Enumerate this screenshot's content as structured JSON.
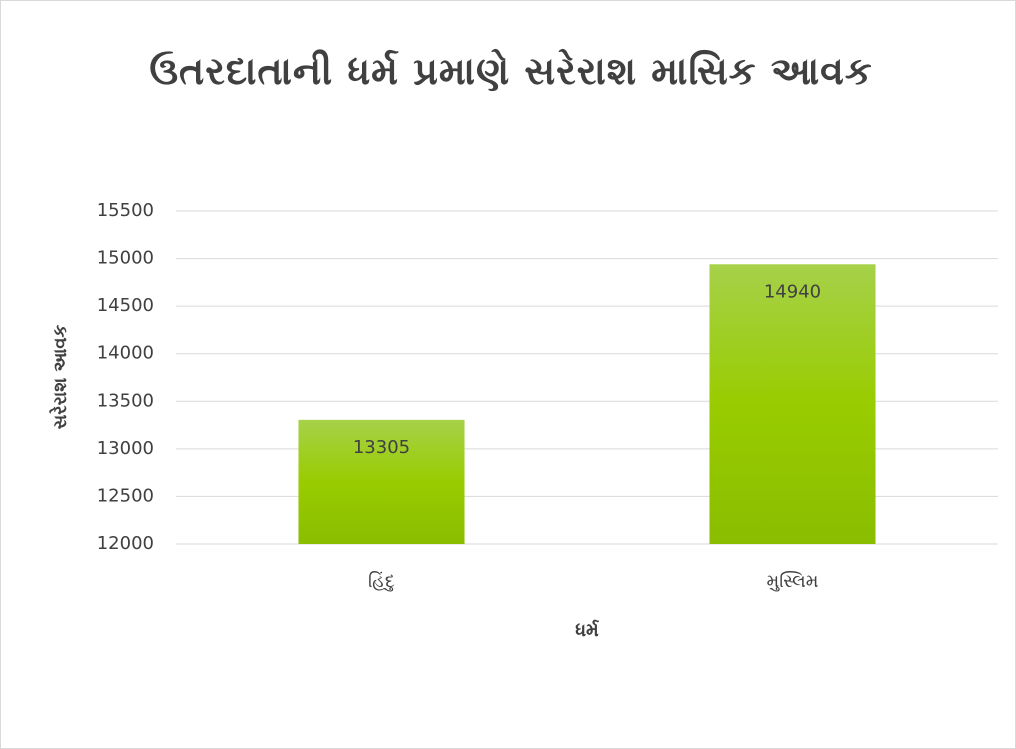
{
  "chart_data": {
    "type": "bar",
    "title": "ઉતરદાતાની ધર્મ પ્રમાણે સરેરાશ માસિક આવક",
    "x_label": "ધર્મ",
    "y_label": "સરેરાશ આવક",
    "categories": [
      "હિંદુ",
      "મુસ્લિમ"
    ],
    "values": [
      13305,
      14940
    ],
    "color": "#99cc00",
    "ylim": [
      12000,
      15500
    ],
    "yticks": [
      12000,
      12500,
      13000,
      13500,
      14000,
      14500,
      15000,
      15500
    ],
    "grid": true
  }
}
